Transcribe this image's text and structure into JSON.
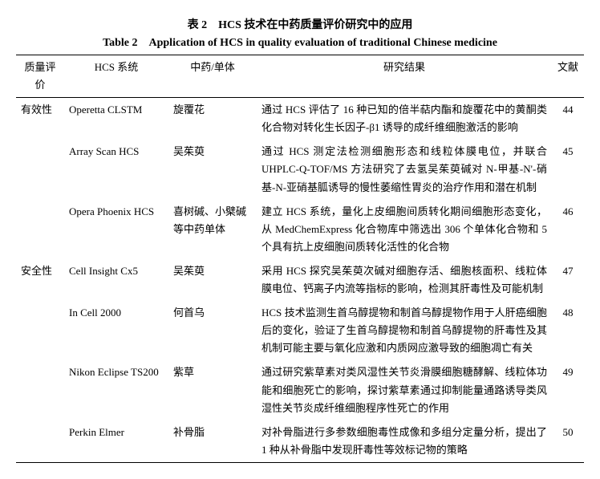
{
  "title_zh": "表 2　HCS 技术在中药质量评价研究中的应用",
  "title_en": "Table 2　Application of HCS in quality evaluation of traditional Chinese medicine",
  "headers": {
    "eval": "质量评价",
    "sys": "HCS 系统",
    "med": "中药/单体",
    "res": "研究结果",
    "ref": "文献"
  },
  "rows": [
    {
      "eval": "有效性",
      "sys": "Operetta CLSTM",
      "med": "旋覆花",
      "res": "通过 HCS 评估了 16 种已知的倍半萜内酯和旋覆花中的黄酮类化合物对转化生长因子-β1 诱导的成纤维细胞激活的影响",
      "ref": "44"
    },
    {
      "eval": "",
      "sys": "Array Scan HCS",
      "med": "吴茱萸",
      "res": "通过 HCS 测定法检测细胞形态和线粒体膜电位，并联合 UHPLC-Q-TOF/MS 方法研究了去氢吴茱萸碱对 N-甲基-N'-硝基-N-亚硝基胍诱导的慢性萎缩性胃炎的治疗作用和潜在机制",
      "ref": "45"
    },
    {
      "eval": "",
      "sys": "Opera Phoenix HCS",
      "med": "喜树碱、小檗碱等中药单体",
      "res": "建立 HCS 系统，量化上皮细胞间质转化期间细胞形态变化，从 MedChemExpress 化合物库中筛选出 306 个单体化合物和 5 个具有抗上皮细胞间质转化活性的化合物",
      "ref": "46"
    },
    {
      "eval": "安全性",
      "sys": "Cell Insight Cx5",
      "med": "吴茱萸",
      "res": "采用 HCS 探究吴茱萸次碱对细胞存活、细胞核面积、线粒体膜电位、钙离子内流等指标的影响，检测其肝毒性及可能机制",
      "ref": "47"
    },
    {
      "eval": "",
      "sys": "In Cell 2000",
      "med": "何首乌",
      "res": "HCS 技术监测生首乌醇提物和制首乌醇提物作用于人肝癌细胞后的变化，验证了生首乌醇提物和制首乌醇提物的肝毒性及其机制可能主要与氧化应激和内质网应激导致的细胞凋亡有关",
      "ref": "48"
    },
    {
      "eval": "",
      "sys": "Nikon Eclipse TS200",
      "med": "紫草",
      "res": "通过研究紫草素对类风湿性关节炎滑膜细胞糖酵解、线粒体功能和细胞死亡的影响，探讨紫草素通过抑制能量通路诱导类风湿性关节炎成纤维细胞程序性死亡的作用",
      "ref": "49"
    },
    {
      "eval": "",
      "sys": "Perkin Elmer",
      "med": "补骨脂",
      "res": "对补骨脂进行多参数细胞毒性成像和多组分定量分析，提出了 1 种从补骨脂中发现肝毒性等效标记物的策略",
      "ref": "50"
    }
  ]
}
